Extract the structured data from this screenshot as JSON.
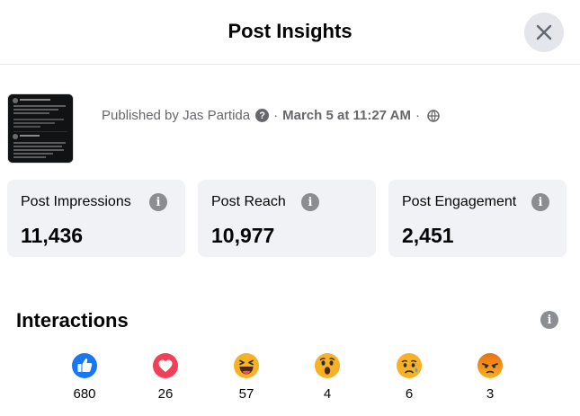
{
  "dialog": {
    "title": "Post Insights"
  },
  "post": {
    "published_prefix": "Published by",
    "author": "Jas Partida",
    "separator": "·",
    "date": "March 5 at 11:27 AM"
  },
  "metrics": [
    {
      "label": "Post Impressions",
      "value": "11,436"
    },
    {
      "label": "Post Reach",
      "value": "10,977"
    },
    {
      "label": "Post Engagement",
      "value": "2,451"
    }
  ],
  "interactions": {
    "title": "Interactions",
    "reactions": [
      {
        "icon": "like-icon",
        "count": "680"
      },
      {
        "icon": "love-icon",
        "count": "26"
      },
      {
        "icon": "haha-icon",
        "count": "57"
      },
      {
        "icon": "wow-icon",
        "count": "4"
      },
      {
        "icon": "sad-icon",
        "count": "6"
      },
      {
        "icon": "angry-icon",
        "count": "3"
      }
    ]
  },
  "colors": {
    "like": "#1877f2",
    "love": "#f33e58",
    "emoji_yellow": "#f7b125",
    "angry": "#e9710f",
    "card_bg": "#f0f2f5",
    "secondary_text": "#65676b"
  }
}
